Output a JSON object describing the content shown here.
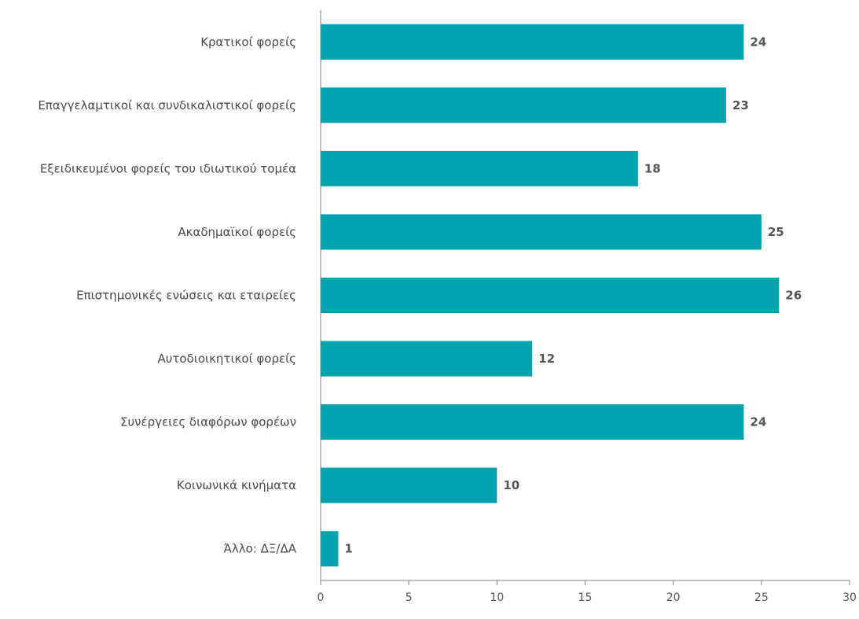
{
  "chart_data": {
    "type": "bar",
    "orientation": "horizontal",
    "title": "",
    "xlabel": "",
    "ylabel": "",
    "categories": [
      "Κρατικοί φορείς",
      "Επαγγελαμτικοί και συνδικαλιστικοί φορείς",
      "Εξειδικευμένοι φορείς του ιδιωτικού τομέα",
      "Ακαδημαϊκοί φορείς",
      "Επιστημονικές ενώσεις και εταιρείες",
      "Αυτοδιοικητικοί φορείς",
      "Συνέργειες διαφόρων φορέων",
      "Κοινωνικά κινήματα",
      "Άλλο: ΔΞ/ΔΑ"
    ],
    "values": [
      24,
      23,
      18,
      25,
      26,
      12,
      24,
      10,
      1
    ],
    "value_labels": [
      "24",
      "23",
      "18",
      "25",
      "26",
      "12",
      "24",
      "10",
      "1"
    ],
    "xlim": [
      0,
      30
    ],
    "x_ticks": [
      0,
      5,
      10,
      15,
      20,
      25,
      30
    ],
    "x_tick_labels": [
      "0",
      "5",
      "10",
      "15",
      "20",
      "25",
      "30"
    ],
    "grid": false,
    "legend": "none",
    "bar_color": "#00a3ad",
    "axis_color": "#7f7f7f",
    "label_color": "#4a4a4a"
  }
}
